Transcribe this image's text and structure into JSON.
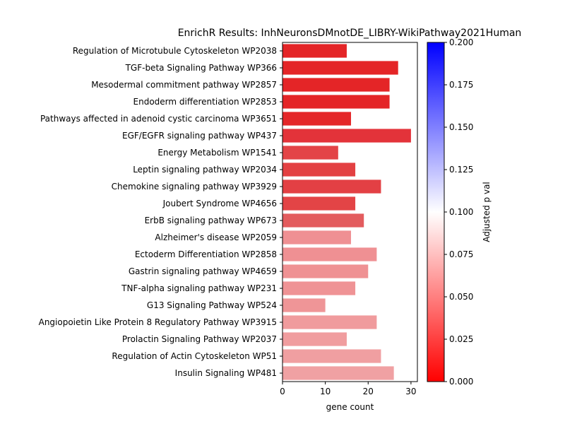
{
  "chart_data": {
    "type": "bar",
    "orientation": "horizontal",
    "title": "EnrichR Results: InhNeuronsDMnotDE_LIBRY-WikiPathway2021Human",
    "xlabel": "gene count",
    "ylabel": "",
    "xlim": [
      0,
      31.5
    ],
    "xticks": [
      0,
      10,
      20,
      30
    ],
    "categories": [
      "Regulation of Microtubule Cytoskeleton WP2038",
      "TGF-beta Signaling Pathway WP366",
      "Mesodermal commitment pathway WP2857",
      "Endoderm differentiation WP2853",
      "Pathways affected in adenoid cystic carcinoma WP3651",
      "EGF/EGFR signaling pathway WP437",
      "Energy Metabolism WP1541",
      "Leptin signaling pathway WP2034",
      "Chemokine signaling pathway WP3929",
      "Joubert Syndrome WP4656",
      "ErbB signaling pathway WP673",
      "Alzheimer's disease WP2059",
      "Ectoderm Differentiation WP2858",
      "Gastrin signaling pathway WP4659",
      "TNF-alpha signaling pathway WP231",
      "G13 Signaling Pathway WP524",
      "Angiopoietin Like Protein 8 Regulatory Pathway WP3915",
      "Prolactin Signaling Pathway WP2037",
      "Regulation of Actin Cytoskeleton WP51",
      "Insulin Signaling WP481"
    ],
    "values": [
      15,
      27,
      25,
      25,
      16,
      30,
      13,
      17,
      23,
      17,
      19,
      16,
      22,
      20,
      17,
      10,
      22,
      15,
      23,
      26
    ],
    "bar_colors": [
      "#e42527",
      "#e42527",
      "#e42527",
      "#e42527",
      "#e42729",
      "#e3333a",
      "#e34447",
      "#e34042",
      "#e34044",
      "#e34446",
      "#e35c5e",
      "#ef9093",
      "#ef9093",
      "#ef9193",
      "#ef9395",
      "#ef9597",
      "#f09b9d",
      "#f09d9f",
      "#f09fa1",
      "#f0a1a3"
    ],
    "colorbar": {
      "label": "Adjusted p val",
      "range": [
        0.0,
        0.2
      ],
      "ticks": [
        "0.000",
        "0.025",
        "0.050",
        "0.075",
        "0.100",
        "0.125",
        "0.150",
        "0.175",
        "0.200"
      ],
      "colormap": [
        "#ff0000",
        "#ffffff",
        "#0000ff"
      ]
    }
  }
}
